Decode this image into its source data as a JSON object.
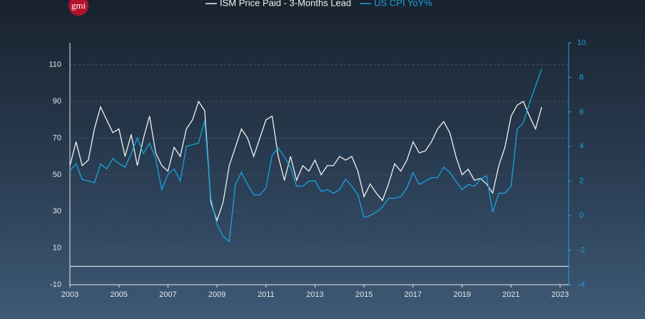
{
  "logo": "gmi",
  "chart_data": {
    "type": "line",
    "x": [
      2003,
      2003.25,
      2003.5,
      2003.75,
      2004,
      2004.25,
      2004.5,
      2004.75,
      2005,
      2005.25,
      2005.5,
      2005.75,
      2006,
      2006.25,
      2006.5,
      2006.75,
      2007,
      2007.25,
      2007.5,
      2007.75,
      2008,
      2008.25,
      2008.5,
      2008.75,
      2009,
      2009.25,
      2009.5,
      2009.75,
      2010,
      2010.25,
      2010.5,
      2010.75,
      2011,
      2011.25,
      2011.5,
      2011.75,
      2012,
      2012.25,
      2012.5,
      2012.75,
      2013,
      2013.25,
      2013.5,
      2013.75,
      2014,
      2014.25,
      2014.5,
      2014.75,
      2015,
      2015.25,
      2015.5,
      2015.75,
      2016,
      2016.25,
      2016.5,
      2016.75,
      2017,
      2017.25,
      2017.5,
      2017.75,
      2018,
      2018.25,
      2018.5,
      2018.75,
      2019,
      2019.25,
      2019.5,
      2019.75,
      2020,
      2020.25,
      2020.5,
      2020.75,
      2021,
      2021.25,
      2021.5,
      2021.75,
      2022,
      2022.25
    ],
    "series": [
      {
        "name": "ISM Price Paid - 3-Months Lead",
        "color": "#f2f2f2",
        "values": [
          55,
          68,
          55,
          58,
          75,
          87,
          80,
          73,
          75,
          60,
          72,
          55,
          70,
          82,
          62,
          55,
          52,
          65,
          60,
          75,
          80,
          90,
          85,
          35,
          25,
          35,
          55,
          65,
          75,
          70,
          60,
          70,
          80,
          82,
          60,
          47,
          60,
          47,
          55,
          52,
          58,
          50,
          55,
          55,
          60,
          58,
          60,
          52,
          38,
          45,
          40,
          36,
          45,
          56,
          52,
          58,
          68,
          62,
          63,
          68,
          75,
          79,
          73,
          60,
          50,
          53,
          47,
          48,
          45,
          40,
          55,
          65,
          82,
          88,
          90,
          82,
          75,
          87
        ]
      },
      {
        "name": "US CPI YoY%",
        "color": "#1aa3dd",
        "axis": "y2",
        "values": [
          2.6,
          3.0,
          2.1,
          2.0,
          1.9,
          3.0,
          2.7,
          3.3,
          3.0,
          2.8,
          3.6,
          4.5,
          3.6,
          4.2,
          3.3,
          1.5,
          2.4,
          2.7,
          2.0,
          4.0,
          4.1,
          4.2,
          5.5,
          1.0,
          -0.5,
          -1.2,
          -1.5,
          1.8,
          2.5,
          1.8,
          1.2,
          1.2,
          1.6,
          3.5,
          3.9,
          3.4,
          2.8,
          1.7,
          1.7,
          2.0,
          2.0,
          1.4,
          1.5,
          1.3,
          1.5,
          2.1,
          1.7,
          1.2,
          -0.1,
          0.0,
          0.2,
          0.5,
          1.0,
          1.0,
          1.1,
          1.6,
          2.5,
          1.8,
          2.0,
          2.2,
          2.2,
          2.8,
          2.5,
          2.0,
          1.5,
          1.8,
          1.7,
          2.1,
          2.3,
          0.2,
          1.3,
          1.3,
          1.7,
          5.0,
          5.4,
          6.5,
          7.5,
          8.5
        ]
      }
    ],
    "xlim": [
      2003,
      2023
    ],
    "xticks": [
      2003,
      2005,
      2007,
      2009,
      2011,
      2013,
      2015,
      2017,
      2019,
      2021,
      2023
    ],
    "ylim": [
      -10,
      122
    ],
    "yticks": [
      -10,
      10,
      30,
      50,
      70,
      90,
      110
    ],
    "y2lim": [
      -4,
      10
    ],
    "y2ticks": [
      10,
      8,
      6,
      4,
      2,
      0,
      -2,
      -4
    ],
    "grid": true
  }
}
